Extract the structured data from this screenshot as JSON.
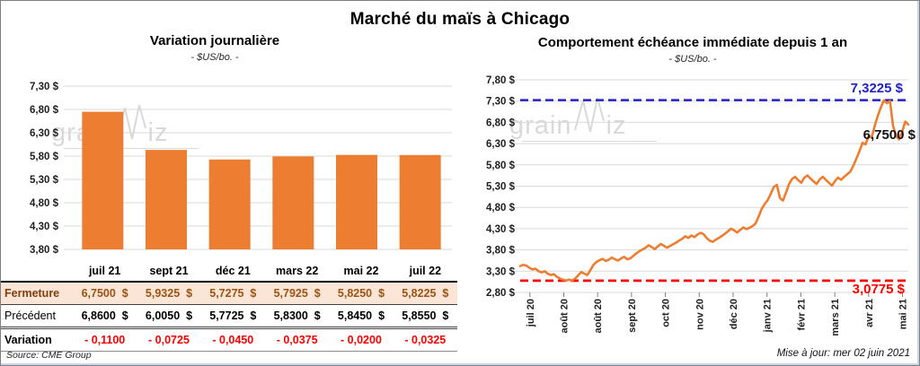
{
  "page": {
    "title": "Marché du maïs à Chicago"
  },
  "left_chart": {
    "title": "Variation journalière",
    "subtitle": "- $US/bo. -",
    "source": "Source: CME Group"
  },
  "right_chart": {
    "title": "Comportement échéance immédiate depuis 1 an",
    "subtitle": "- $US/bo. -",
    "max_label": "7,3225 $",
    "last_label": "6,7500 $",
    "min_label": "3,0775 $",
    "updated": "Mise à jour: mer 02 juin 2021"
  },
  "watermark": {
    "part1": "grain",
    "part2": "iz"
  },
  "table": {
    "headers": [
      "juil 21",
      "sept 21",
      "déc 21",
      "mars 22",
      "mai 22",
      "juil 22"
    ],
    "rows": [
      {
        "label": "Fermeture",
        "cells": [
          "6,7500 $",
          "5,9325 $",
          "5,7275 $",
          "5,7925 $",
          "5,8250 $",
          "5,8225 $"
        ]
      },
      {
        "label": "Précédent",
        "cells": [
          "6,8600 $",
          "6,0050 $",
          "5,7725 $",
          "5,8300 $",
          "5,8450 $",
          "5,8550 $"
        ]
      },
      {
        "label": "Variation",
        "cells": [
          "- 0,1100",
          "- 0,0725",
          "- 0,0450",
          "- 0,0375",
          "- 0,0200",
          "- 0,0325"
        ]
      }
    ]
  },
  "colors": {
    "accent_orange": "#ED7D31",
    "fermeture_bg": "#FBE5D6",
    "fermeture_text": "#843C0C",
    "variation_red": "#FF0000",
    "max_line_blue": "#2222C8",
    "min_line_red": "#FF0000",
    "gridline": "#D9D9D9",
    "watermark": "#D9D9D9"
  },
  "chart_data": [
    {
      "type": "bar",
      "title": "Variation journalière",
      "subtitle": "- $US/bo. -",
      "categories": [
        "juil 21",
        "sept 21",
        "déc 21",
        "mars 22",
        "mai 22",
        "juil 22"
      ],
      "values": [
        6.75,
        5.9325,
        5.7275,
        5.7925,
        5.825,
        5.8225
      ],
      "ylabel": "$US/bo.",
      "ylim": [
        3.8,
        7.3
      ],
      "ytick_step": 0.5,
      "grid": true,
      "bar_color": "#ED7D31"
    },
    {
      "type": "line",
      "title": "Comportement échéance immédiate depuis 1 an",
      "subtitle": "- $US/bo. -",
      "x_tick_labels": [
        "juil 20",
        "août 20",
        "août 20",
        "sept 20",
        "oct 20",
        "nov 20",
        "déc 20",
        "janv 21",
        "févr 21",
        "mars 21",
        "avr 21",
        "mai 21"
      ],
      "ylim": [
        2.8,
        7.8
      ],
      "ytick_step": 0.5,
      "grid": true,
      "line_color": "#ED7D31",
      "max_ref_line": 7.3225,
      "min_ref_line": 3.0775,
      "last_value": 6.75,
      "values": [
        3.42,
        3.45,
        3.43,
        3.38,
        3.34,
        3.36,
        3.3,
        3.27,
        3.3,
        3.24,
        3.21,
        3.23,
        3.17,
        3.13,
        3.1,
        3.08,
        3.1,
        3.08,
        3.13,
        3.2,
        3.28,
        3.24,
        3.21,
        3.33,
        3.45,
        3.52,
        3.56,
        3.59,
        3.54,
        3.57,
        3.62,
        3.58,
        3.55,
        3.6,
        3.64,
        3.58,
        3.6,
        3.66,
        3.72,
        3.77,
        3.81,
        3.85,
        3.91,
        3.87,
        3.82,
        3.88,
        3.94,
        3.9,
        3.85,
        3.89,
        3.93,
        3.97,
        4.02,
        4.06,
        4.12,
        4.08,
        4.14,
        4.1,
        4.16,
        4.2,
        4.17,
        4.08,
        4.02,
        3.99,
        4.04,
        4.08,
        4.13,
        4.18,
        4.24,
        4.3,
        4.26,
        4.21,
        4.27,
        4.33,
        4.29,
        4.32,
        4.36,
        4.42,
        4.58,
        4.76,
        4.88,
        4.97,
        5.12,
        5.28,
        5.33,
        5.02,
        4.96,
        5.15,
        5.35,
        5.47,
        5.52,
        5.44,
        5.38,
        5.5,
        5.55,
        5.48,
        5.41,
        5.35,
        5.46,
        5.52,
        5.45,
        5.38,
        5.31,
        5.42,
        5.5,
        5.45,
        5.52,
        5.58,
        5.64,
        5.78,
        5.95,
        6.12,
        6.32,
        6.28,
        6.48,
        6.44,
        6.72,
        6.95,
        7.15,
        7.32,
        7.25,
        7.3,
        6.72,
        6.48,
        6.4,
        6.58,
        6.82,
        6.75
      ]
    }
  ]
}
